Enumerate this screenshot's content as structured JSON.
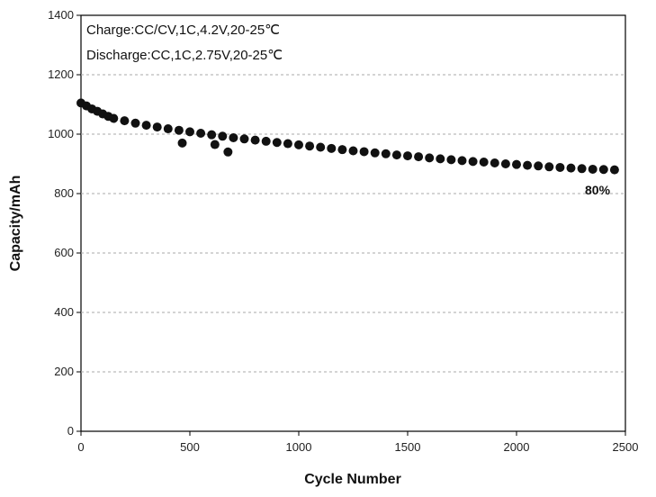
{
  "chart_data": {
    "type": "scatter",
    "title": "",
    "xlabel": "Cycle Number",
    "ylabel": "Capacity/mAh",
    "xlim": [
      0,
      2500
    ],
    "ylim": [
      0,
      1400
    ],
    "x_ticks": [
      0,
      500,
      1000,
      1500,
      2000,
      2500
    ],
    "y_ticks": [
      0,
      200,
      400,
      600,
      800,
      1000,
      1200,
      1400
    ],
    "x_tick_labels": [
      "0",
      "500",
      "1000",
      "1500",
      "2000",
      "2500"
    ],
    "y_tick_labels": [
      "0",
      "200",
      "400",
      "600",
      "800",
      "1000",
      "1200",
      "1400"
    ],
    "grid": "horizontal dashed",
    "annotations": [
      "Charge:CC/CV,1C,4.2V,20-25℃",
      "Discharge:CC,1C,2.75V,20-25℃"
    ],
    "end_label": "80%",
    "series": [
      {
        "color": "#111111",
        "marker": "circle",
        "x": [
          0,
          25,
          50,
          75,
          100,
          125,
          150,
          200,
          250,
          300,
          350,
          400,
          450,
          500,
          550,
          600,
          650,
          700,
          750,
          800,
          850,
          900,
          950,
          1000,
          1050,
          1100,
          1150,
          1200,
          1250,
          1300,
          1350,
          1400,
          1450,
          1500,
          1550,
          1600,
          1650,
          1700,
          1750,
          1800,
          1850,
          1900,
          1950,
          2000,
          2050,
          2100,
          2150,
          2200,
          2250,
          2300,
          2350,
          2400,
          2450,
          465,
          615,
          675
        ],
        "y": [
          1105,
          1095,
          1085,
          1077,
          1068,
          1060,
          1053,
          1045,
          1037,
          1030,
          1024,
          1018,
          1013,
          1008,
          1003,
          998,
          993,
          988,
          984,
          980,
          976,
          972,
          968,
          964,
          960,
          956,
          952,
          948,
          944,
          941,
          937,
          934,
          930,
          927,
          924,
          920,
          917,
          914,
          911,
          908,
          906,
          903,
          900,
          898,
          895,
          893,
          890,
          888,
          886,
          884,
          882,
          881,
          880,
          970,
          965,
          940
        ]
      }
    ]
  }
}
